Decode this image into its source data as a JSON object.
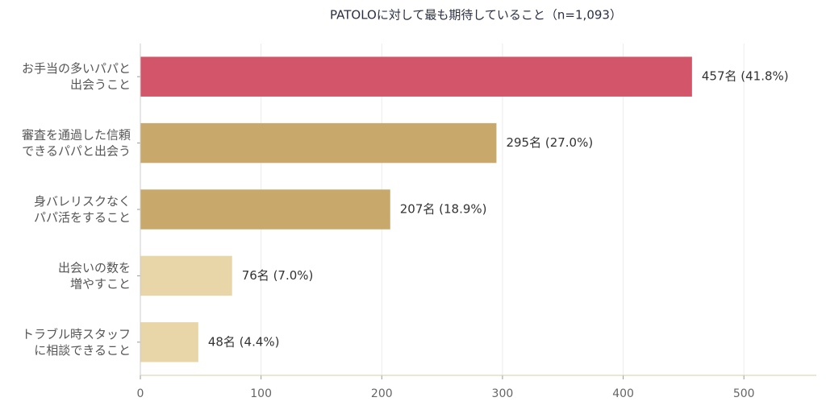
{
  "chart_data": {
    "type": "bar",
    "orientation": "horizontal",
    "title": "PATOLOに対して最も期待していること（n=1,093）",
    "categories": [
      [
        "お手当の多いパパと",
        "出会うこと"
      ],
      [
        "審査を通過した信頼",
        "できるパパと出会う"
      ],
      [
        "身バレリスクなく",
        "パパ活をすること"
      ],
      [
        "出会いの数を",
        "増やすこと"
      ],
      [
        "トラブル時スタッフ",
        "に相談できること"
      ]
    ],
    "values": [
      457,
      295,
      207,
      76,
      48
    ],
    "value_labels": [
      "457名 (41.8%)",
      "295名 (27.0%)",
      "207名 (18.9%)",
      "76名 (7.0%)",
      "48名 (4.4%)"
    ],
    "colors": [
      "#d35569",
      "#c8a96b",
      "#c8a96b",
      "#e8d5a8",
      "#e8d5a8"
    ],
    "xlim": [
      0,
      560
    ],
    "xticks": [
      0,
      100,
      200,
      300,
      400,
      500
    ],
    "grid": true
  }
}
